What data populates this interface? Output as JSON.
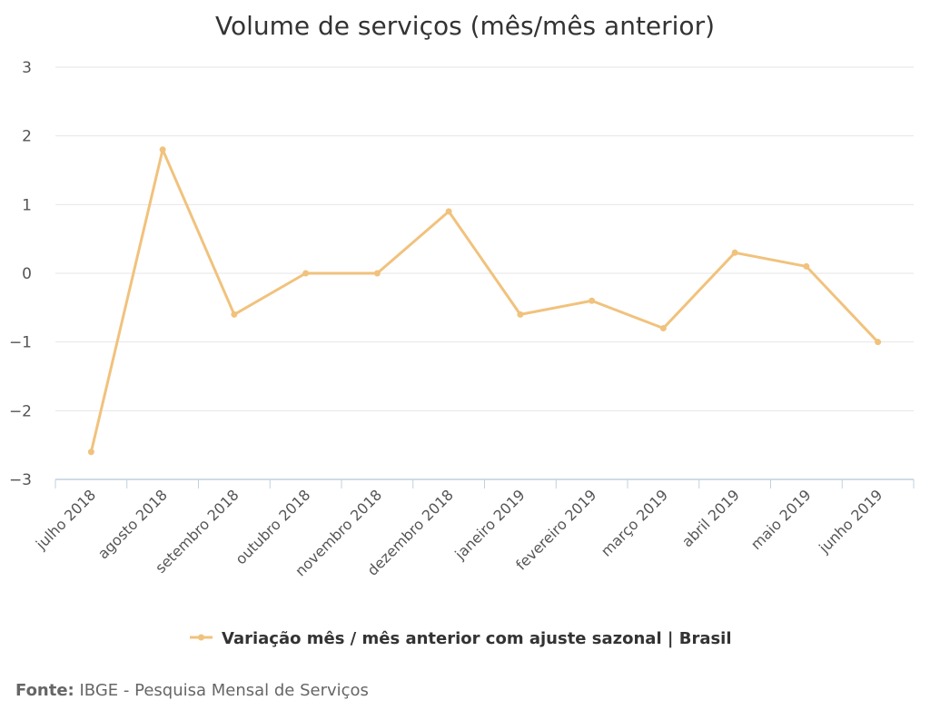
{
  "chart_data": {
    "type": "line",
    "title": "Volume de serviços (mês/mês anterior)",
    "categories": [
      "julho 2018",
      "agosto 2018",
      "setembro 2018",
      "outubro 2018",
      "novembro 2018",
      "dezembro 2018",
      "janeiro 2019",
      "fevereiro 2019",
      "março 2019",
      "abril 2019",
      "maio 2019",
      "junho 2019"
    ],
    "series": [
      {
        "name": "Variação mês / mês anterior com ajuste sazonal | Brasil",
        "values": [
          -2.6,
          1.8,
          -0.6,
          0.0,
          0.0,
          0.9,
          -0.6,
          -0.4,
          -0.8,
          0.3,
          0.1,
          -1.0
        ],
        "color": "#f1c27d"
      }
    ],
    "ylim": [
      -3,
      3
    ],
    "yticks": [
      "3",
      "2",
      "1",
      "0",
      "−1",
      "−2",
      "−3"
    ],
    "grid": true,
    "legend_position": "bottom",
    "source_label": "Fonte:",
    "source_text": "IBGE - Pesquisa Mensal de Serviços"
  }
}
